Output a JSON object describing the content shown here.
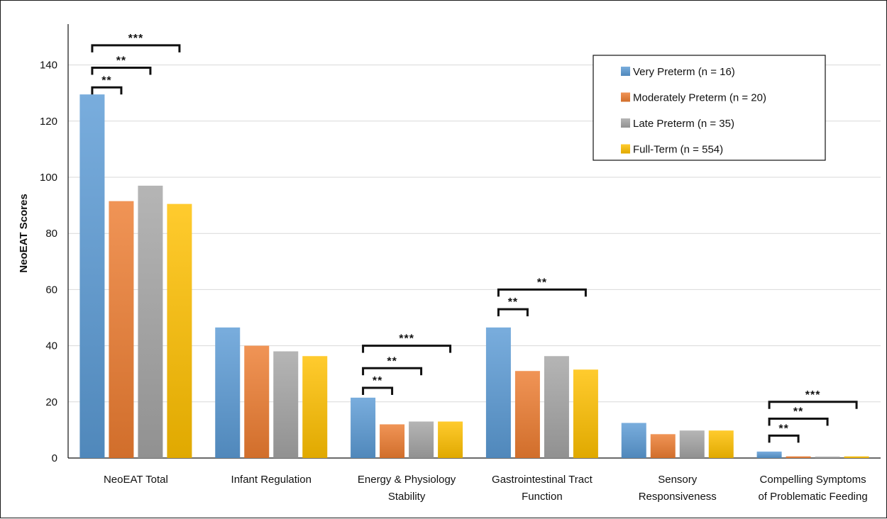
{
  "chart_data": {
    "type": "bar",
    "ylabel": "NeoEAT Scores",
    "ylim": [
      0,
      150
    ],
    "yticks": [
      0,
      20,
      40,
      60,
      80,
      100,
      120,
      140
    ],
    "grid": true,
    "legend_position": "top-right",
    "categories": [
      [
        "NeoEAT Total"
      ],
      [
        "Infant Regulation"
      ],
      [
        "Energy & Physiology",
        "Stability"
      ],
      [
        "Gastrointestinal Tract",
        "Function"
      ],
      [
        "Sensory",
        "Responsiveness"
      ],
      [
        "Compelling Symptoms",
        "of Problematic Feeding"
      ]
    ],
    "series": [
      {
        "name": "Very Preterm (n = 16)",
        "color": "#5B9BD5",
        "values": [
          129.5,
          46.5,
          21.5,
          46.5,
          12.5,
          2.3
        ]
      },
      {
        "name": "Moderately Preterm (n = 20)",
        "color": "#ED7D31",
        "values": [
          91.5,
          40,
          12,
          31,
          8.5,
          0.6
        ]
      },
      {
        "name": "Late Preterm (n = 35)",
        "color": "#A5A5A5",
        "values": [
          97,
          38,
          13,
          36.3,
          9.8,
          0.5
        ]
      },
      {
        "name": "Full-Term (n = 554)",
        "color": "#FFC000",
        "values": [
          90.5,
          36.3,
          13,
          31.5,
          9.8,
          0.6
        ]
      }
    ],
    "significance": [
      {
        "category": 0,
        "from": 0,
        "to": 1,
        "label": "**",
        "y": 132
      },
      {
        "category": 0,
        "from": 0,
        "to": 2,
        "label": "**",
        "y": 139
      },
      {
        "category": 0,
        "from": 0,
        "to": 3,
        "label": "***",
        "y": 147
      },
      {
        "category": 2,
        "from": 0,
        "to": 1,
        "label": "**",
        "y": 25
      },
      {
        "category": 2,
        "from": 0,
        "to": 2,
        "label": "**",
        "y": 32
      },
      {
        "category": 2,
        "from": 0,
        "to": 3,
        "label": "***",
        "y": 40
      },
      {
        "category": 3,
        "from": 0,
        "to": 1,
        "label": "**",
        "y": 53
      },
      {
        "category": 3,
        "from": 0,
        "to": 3,
        "label": "**",
        "y": 60
      },
      {
        "category": 5,
        "from": 0,
        "to": 1,
        "label": "**",
        "y": 8
      },
      {
        "category": 5,
        "from": 0,
        "to": 2,
        "label": "**",
        "y": 14
      },
      {
        "category": 5,
        "from": 0,
        "to": 3,
        "label": "***",
        "y": 20
      }
    ]
  }
}
